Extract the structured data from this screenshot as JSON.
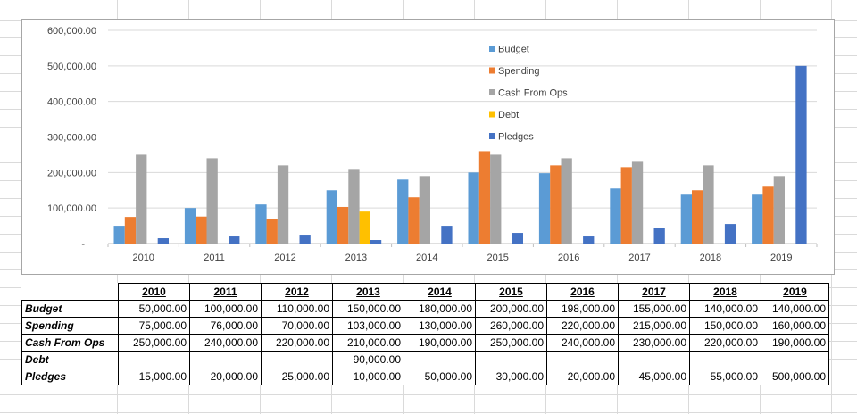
{
  "colors": {
    "budget": "#5b9bd5",
    "spending": "#ed7d31",
    "cash_from_ops": "#a5a5a5",
    "debt": "#ffc000",
    "pledges": "#4472c4"
  },
  "chart_data": {
    "type": "bar",
    "categories": [
      "2010",
      "2011",
      "2012",
      "2013",
      "2014",
      "2015",
      "2016",
      "2017",
      "2018",
      "2019"
    ],
    "series": [
      {
        "name": "Budget",
        "color": "#5b9bd5",
        "values": [
          50000,
          100000,
          110000,
          150000,
          180000,
          200000,
          198000,
          155000,
          140000,
          140000
        ]
      },
      {
        "name": "Spending",
        "color": "#ed7d31",
        "values": [
          75000,
          76000,
          70000,
          103000,
          130000,
          260000,
          220000,
          215000,
          150000,
          160000
        ]
      },
      {
        "name": "Cash From Ops",
        "color": "#a5a5a5",
        "values": [
          250000,
          240000,
          220000,
          210000,
          190000,
          250000,
          240000,
          230000,
          220000,
          190000
        ]
      },
      {
        "name": "Debt",
        "color": "#ffc000",
        "values": [
          null,
          null,
          null,
          90000,
          null,
          null,
          null,
          null,
          null,
          null
        ]
      },
      {
        "name": "Pledges",
        "color": "#4472c4",
        "values": [
          15000,
          20000,
          25000,
          10000,
          50000,
          30000,
          20000,
          45000,
          55000,
          500000
        ]
      }
    ],
    "y_ticks": [
      0,
      100000,
      200000,
      300000,
      400000,
      500000,
      600000
    ],
    "y_tick_labels": [
      "-",
      "100,000.00",
      "200,000.00",
      "300,000.00",
      "400,000.00",
      "500,000.00",
      "600,000.00"
    ],
    "ylim": [
      0,
      600000
    ],
    "grid": true,
    "legend_position": "top-center"
  },
  "table": {
    "years": [
      "2010",
      "2011",
      "2012",
      "2013",
      "2014",
      "2015",
      "2016",
      "2017",
      "2018",
      "2019"
    ],
    "rows": [
      {
        "label": "Budget",
        "values": [
          "50,000.00",
          "100,000.00",
          "110,000.00",
          "150,000.00",
          "180,000.00",
          "200,000.00",
          "198,000.00",
          "155,000.00",
          "140,000.00",
          "140,000.00"
        ]
      },
      {
        "label": "Spending",
        "values": [
          "75,000.00",
          "76,000.00",
          "70,000.00",
          "103,000.00",
          "130,000.00",
          "260,000.00",
          "220,000.00",
          "215,000.00",
          "150,000.00",
          "160,000.00"
        ]
      },
      {
        "label": "Cash From Ops",
        "values": [
          "250,000.00",
          "240,000.00",
          "220,000.00",
          "210,000.00",
          "190,000.00",
          "250,000.00",
          "240,000.00",
          "230,000.00",
          "220,000.00",
          "190,000.00"
        ]
      },
      {
        "label": "Debt",
        "values": [
          "",
          "",
          "",
          "90,000.00",
          "",
          "",
          "",
          "",
          "",
          ""
        ]
      },
      {
        "label": "Pledges",
        "values": [
          "15,000.00",
          "20,000.00",
          "25,000.00",
          "10,000.00",
          "50,000.00",
          "30,000.00",
          "20,000.00",
          "45,000.00",
          "55,000.00",
          "500,000.00"
        ]
      }
    ]
  }
}
